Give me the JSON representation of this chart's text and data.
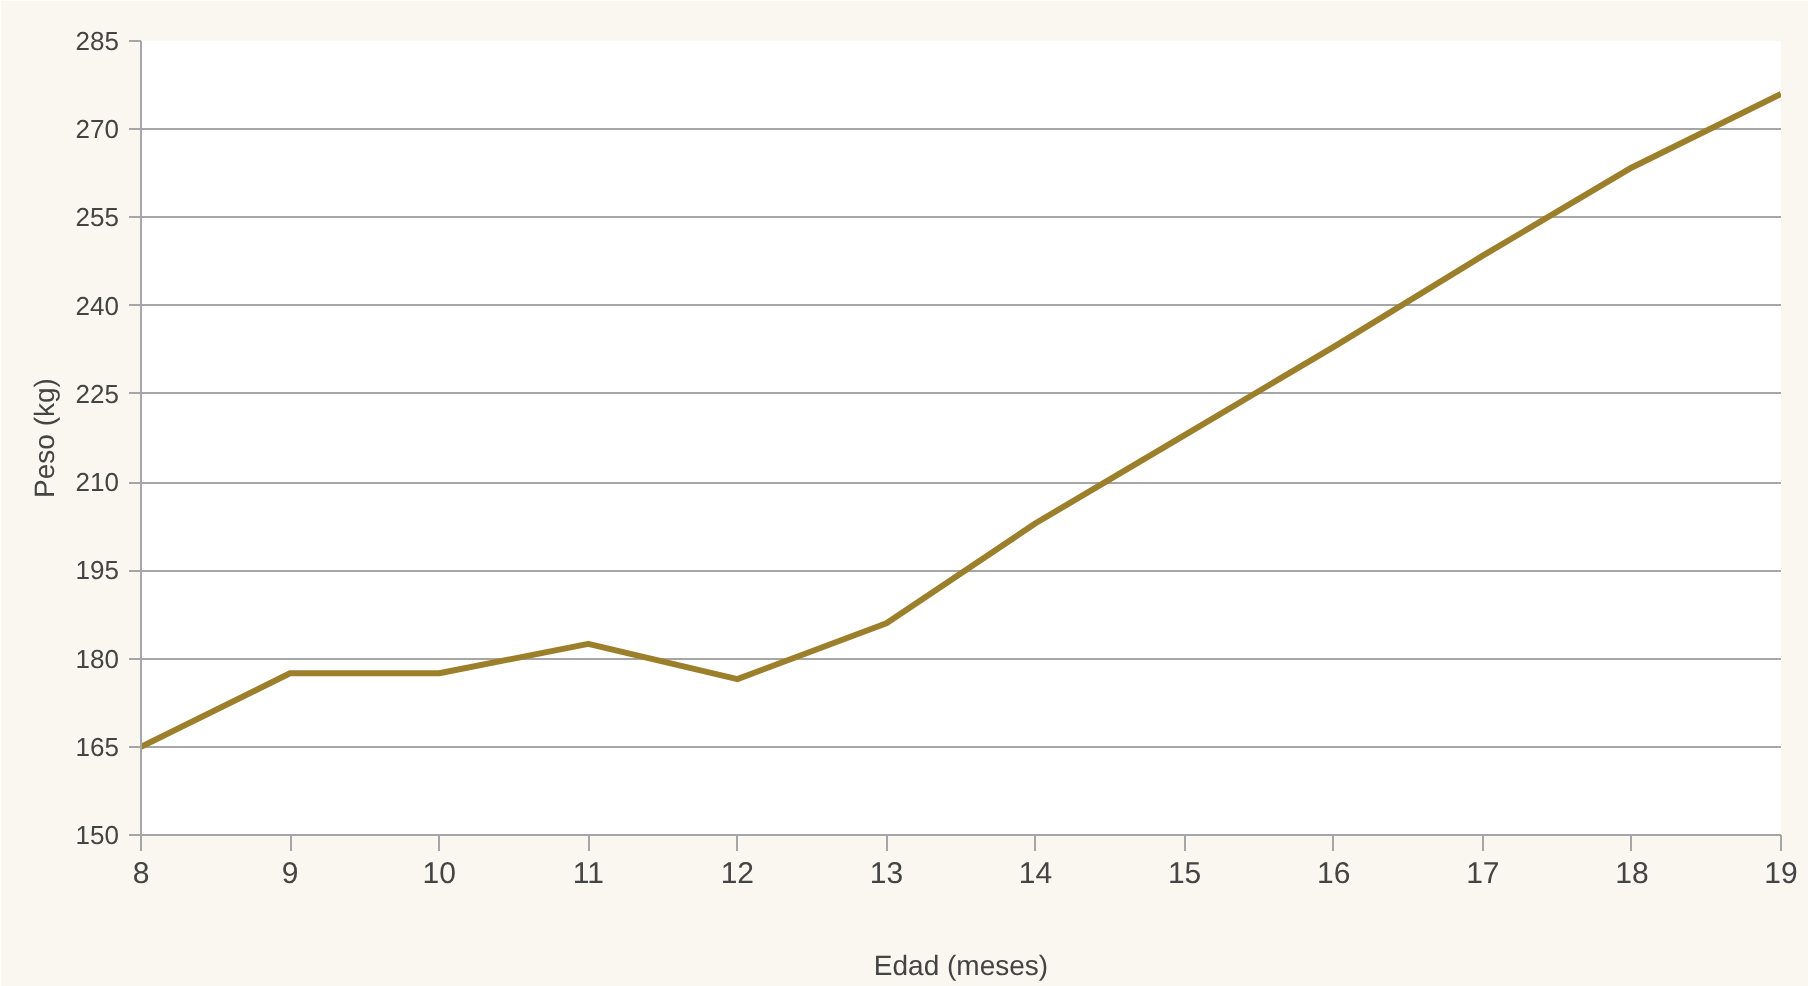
{
  "chart_data": {
    "type": "line",
    "xlabel": "Edad (meses)",
    "ylabel": "Peso (kg)",
    "x": [
      8,
      9,
      10,
      11,
      12,
      13,
      14,
      15,
      16,
      17,
      18,
      19
    ],
    "series": [
      {
        "color": "#9c7f2a",
        "values": [
          165,
          177.5,
          177.5,
          182.5,
          176.5,
          186,
          203,
          218,
          233,
          248.5,
          263.5,
          276
        ]
      }
    ],
    "xlim": [
      8,
      19
    ],
    "xticks": [
      8,
      9,
      10,
      11,
      12,
      13,
      14,
      15,
      16,
      17,
      18,
      19
    ],
    "ylim": [
      150,
      285
    ],
    "yticks": [
      150,
      165,
      180,
      195,
      210,
      225,
      240,
      255,
      270,
      285
    ],
    "grid": "y",
    "marker": "none",
    "line_style": "solid"
  }
}
